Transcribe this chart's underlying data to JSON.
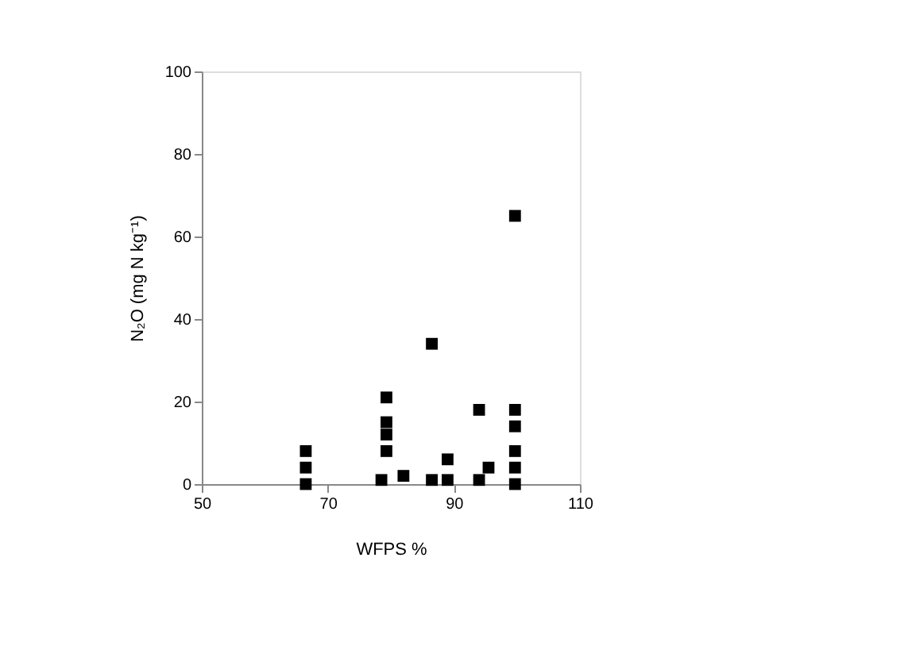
{
  "chart_data": {
    "type": "scatter",
    "xlabel": "WFPS %",
    "ylabel": "N₂O (mg N kg⁻¹)",
    "marker": "square",
    "grid": false,
    "x": [
      66.5,
      66.5,
      66.5,
      78.5,
      79.3,
      79.3,
      79.3,
      79.3,
      82,
      86.5,
      86.5,
      89,
      89,
      94,
      94,
      95.5,
      99.7,
      99.7,
      99.7,
      99.7,
      99.7,
      99.7
    ],
    "values": [
      0,
      4,
      8,
      1,
      8,
      12,
      15,
      21,
      2,
      1,
      34,
      1,
      6,
      1,
      18,
      4,
      0,
      4,
      8,
      14,
      18,
      65
    ],
    "color": "#000000",
    "xlim": [
      50,
      110
    ],
    "xticks": [
      50,
      70,
      90,
      110
    ],
    "ylim": [
      0,
      100
    ],
    "yticks": [
      0,
      20,
      40,
      60,
      80,
      100
    ]
  }
}
